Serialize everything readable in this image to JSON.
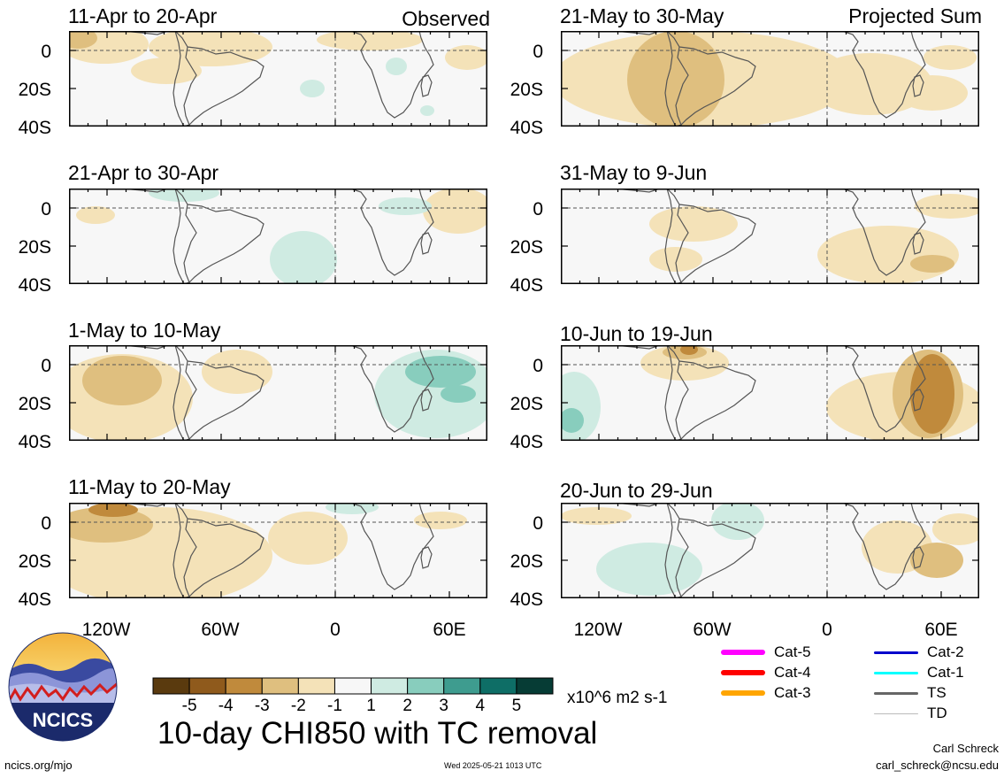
{
  "panels": [
    {
      "id": "p1",
      "title": "11-Apr to 20-Apr",
      "tag": "Observed"
    },
    {
      "id": "p2",
      "title": "21-Apr to 30-Apr",
      "tag": ""
    },
    {
      "id": "p3",
      "title": "1-May to 10-May",
      "tag": ""
    },
    {
      "id": "p4",
      "title": "11-May to 20-May",
      "tag": ""
    },
    {
      "id": "p5",
      "title": "21-May to 30-May",
      "tag": "Projected Sum"
    },
    {
      "id": "p6",
      "title": "31-May to 9-Jun",
      "tag": ""
    },
    {
      "id": "p7",
      "title": "10-Jun to 19-Jun",
      "tag": ""
    },
    {
      "id": "p8",
      "title": "20-Jun to 29-Jun",
      "tag": ""
    }
  ],
  "axes": {
    "lat_labels": [
      "0",
      "20S",
      "40S"
    ],
    "lon_labels": [
      "120W",
      "60W",
      "0",
      "60E"
    ]
  },
  "colorbar": {
    "colors": [
      "#5a3a0e",
      "#8f5a1c",
      "#c08a3c",
      "#dfbf7f",
      "#f4e2b8",
      "#f7f7f7",
      "#cfebe2",
      "#88cdbd",
      "#3e9c8f",
      "#0e6e66",
      "#063c35"
    ],
    "labels": [
      "-5",
      "-4",
      "-3",
      "-2",
      "-1",
      "1",
      "2",
      "3",
      "4",
      "5"
    ],
    "units": "x10^6 m2 s-1"
  },
  "map_colors": {
    "background": "#f7f7f7",
    "tan1": "#f4e2b8",
    "tan2": "#dfbf7f",
    "tan3": "#c08a3c",
    "tan4": "#8f5a1c",
    "teal1": "#cfebe2",
    "teal2": "#88cdbd",
    "teal3": "#3e9c8f",
    "coast": "#555555"
  },
  "title": "10-day CHI850 with TC removal",
  "logo": {
    "text": "NCICS"
  },
  "footer": {
    "url": "ncics.org/mjo",
    "timestamp": "Wed 2025-05-21 1013 UTC",
    "author": "Carl Schreck",
    "email": "carl_schreck@ncsu.edu"
  },
  "tc_legend": [
    {
      "label": "Cat-5",
      "color": "#ff00ff",
      "weight": "thick"
    },
    {
      "label": "Cat-4",
      "color": "#ff0000",
      "weight": "thick"
    },
    {
      "label": "Cat-3",
      "color": "#ffa500",
      "weight": "thick"
    },
    {
      "label": "Cat-2",
      "color": "#0000cc",
      "weight": "medium"
    },
    {
      "label": "Cat-1",
      "color": "#00ffff",
      "weight": "medium"
    },
    {
      "label": "TS",
      "color": "#666666",
      "weight": "medium"
    },
    {
      "label": "TD",
      "color": "#bbbbbb",
      "weight": "thin"
    }
  ]
}
